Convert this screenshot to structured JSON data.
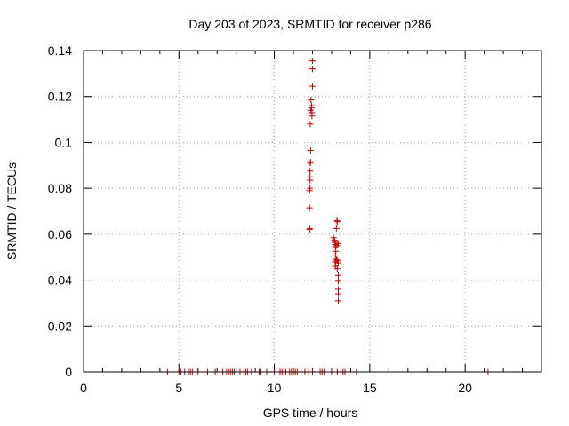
{
  "chart_data": {
    "type": "scatter",
    "title": "Day 203 of 2023, SRMTID for receiver p286",
    "xlabel": "GPS time / hours",
    "ylabel": "SRMTID / TECUs",
    "xlim": [
      0,
      24
    ],
    "ylim": [
      0,
      0.14
    ],
    "x_ticks": [
      0,
      5,
      10,
      15,
      20
    ],
    "x_tick_labels": [
      "0",
      "5",
      "10",
      "15",
      "20"
    ],
    "y_ticks": [
      0,
      0.02,
      0.04,
      0.06,
      0.08,
      0.1,
      0.12,
      0.14
    ],
    "y_tick_labels": [
      "0",
      "0.02",
      "0.04",
      "0.06",
      "0.08",
      "0.1",
      "0.12",
      "0.14"
    ],
    "grid": true,
    "marker": "plus",
    "series_color": "#cc0000",
    "series": [
      {
        "points": [
          [
            4.4,
            0
          ],
          [
            5.0,
            0
          ],
          [
            5.1,
            0
          ],
          [
            5.3,
            0
          ],
          [
            5.5,
            0
          ],
          [
            5.6,
            0
          ],
          [
            5.7,
            0
          ],
          [
            6.0,
            0
          ],
          [
            6.5,
            0
          ],
          [
            6.9,
            0
          ],
          [
            7.3,
            0
          ],
          [
            7.5,
            0
          ],
          [
            7.6,
            0
          ],
          [
            7.7,
            0
          ],
          [
            7.8,
            0
          ],
          [
            7.9,
            0
          ],
          [
            8.2,
            0
          ],
          [
            8.4,
            0
          ],
          [
            8.5,
            0
          ],
          [
            8.6,
            0
          ],
          [
            8.8,
            0
          ],
          [
            9.2,
            0
          ],
          [
            9.3,
            0
          ],
          [
            9.6,
            0
          ],
          [
            10.0,
            0
          ],
          [
            10.3,
            0
          ],
          [
            10.4,
            0
          ],
          [
            10.5,
            0
          ],
          [
            10.6,
            0
          ],
          [
            10.8,
            0
          ],
          [
            10.9,
            0
          ],
          [
            11.0,
            0
          ],
          [
            11.1,
            0
          ],
          [
            11.2,
            0
          ],
          [
            11.4,
            0
          ],
          [
            11.6,
            0
          ],
          [
            11.8,
            0
          ],
          [
            12.0,
            0
          ],
          [
            12.4,
            0
          ],
          [
            12.5,
            0
          ],
          [
            12.6,
            0
          ],
          [
            13.0,
            0
          ],
          [
            13.3,
            0
          ],
          [
            13.6,
            0
          ],
          [
            13.7,
            0
          ],
          [
            14.3,
            0
          ],
          [
            21.2,
            0
          ],
          [
            11.85,
            0.0625
          ],
          [
            11.85,
            0.062
          ],
          [
            11.85,
            0.0715
          ],
          [
            11.85,
            0.079
          ],
          [
            11.87,
            0.08
          ],
          [
            11.87,
            0.0835
          ],
          [
            11.87,
            0.085
          ],
          [
            11.87,
            0.0875
          ],
          [
            11.88,
            0.091
          ],
          [
            11.9,
            0.0915
          ],
          [
            11.9,
            0.0965
          ],
          [
            11.88,
            0.108
          ],
          [
            11.9,
            0.114
          ],
          [
            11.92,
            0.1185
          ],
          [
            11.95,
            0.116
          ],
          [
            11.95,
            0.115
          ],
          [
            11.97,
            0.113
          ],
          [
            11.97,
            0.1115
          ],
          [
            12.0,
            0.1245
          ],
          [
            12.0,
            0.132
          ],
          [
            12.0,
            0.1355
          ],
          [
            13.1,
            0.0585
          ],
          [
            13.15,
            0.0575
          ],
          [
            13.17,
            0.0565
          ],
          [
            13.2,
            0.0555
          ],
          [
            13.2,
            0.0545
          ],
          [
            13.25,
            0.0625
          ],
          [
            13.28,
            0.066
          ],
          [
            13.3,
            0.0655
          ],
          [
            13.22,
            0.0525
          ],
          [
            13.2,
            0.0505
          ],
          [
            13.25,
            0.049
          ],
          [
            13.18,
            0.048
          ],
          [
            13.22,
            0.047
          ],
          [
            13.2,
            0.046
          ],
          [
            13.3,
            0.045
          ],
          [
            13.3,
            0.0485
          ],
          [
            13.35,
            0.0475
          ],
          [
            13.35,
            0.056
          ],
          [
            13.28,
            0.055
          ],
          [
            13.35,
            0.042
          ],
          [
            13.35,
            0.0395
          ],
          [
            13.35,
            0.036
          ],
          [
            13.35,
            0.034
          ],
          [
            13.35,
            0.031
          ]
        ]
      }
    ]
  }
}
